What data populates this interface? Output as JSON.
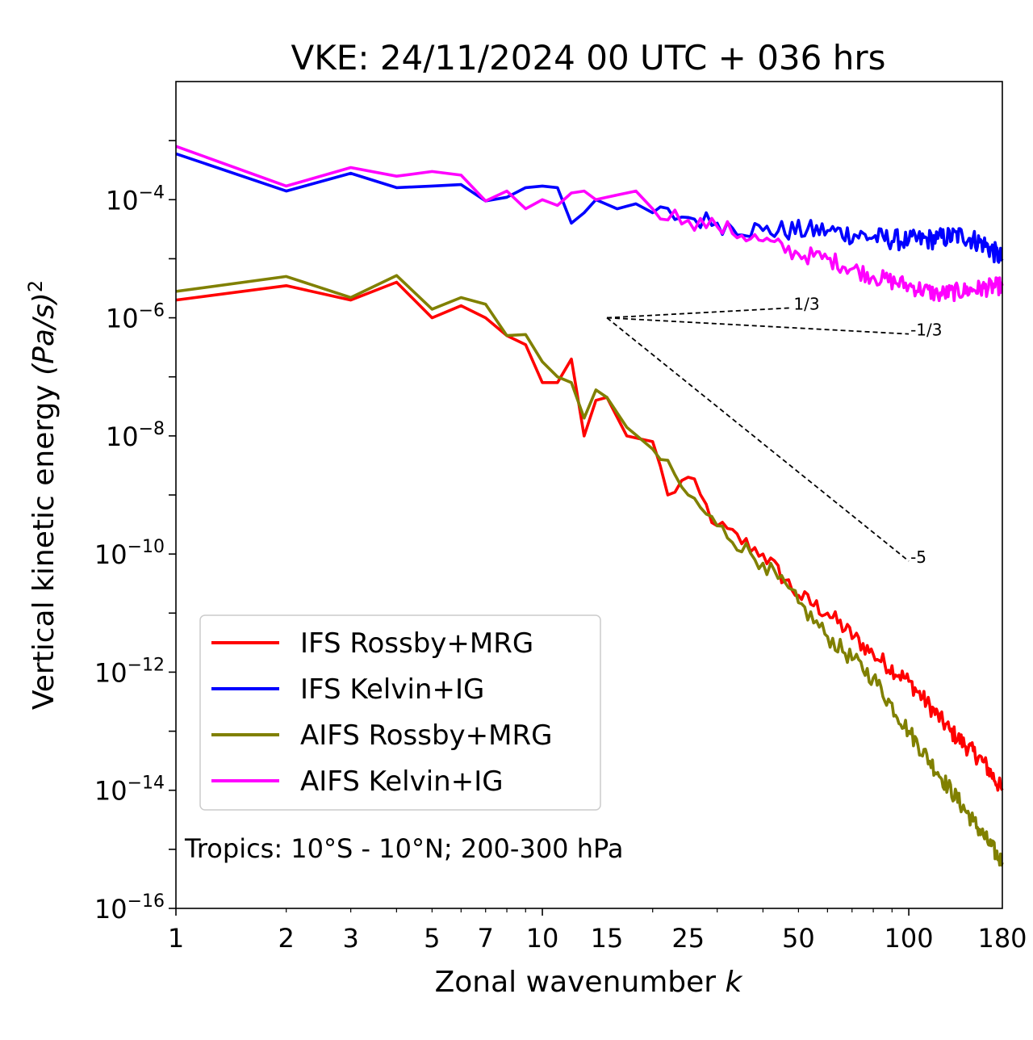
{
  "chart_data": {
    "type": "line",
    "title": "VKE: 24/11/2024 00 UTC + 036 hrs",
    "xlabel": "Zonal wavenumber",
    "xlabel_var": "k",
    "ylabel": "Vertical kinetic energy",
    "ylabel_unit": "(Pa/s)",
    "ylabel_unit_power": "2",
    "x_scale": "log",
    "y_scale": "log",
    "xlim": [
      1,
      180
    ],
    "ylim": [
      1e-16,
      0.01
    ],
    "x_ticks": [
      1,
      2,
      3,
      5,
      7,
      10,
      15,
      25,
      50,
      100,
      180
    ],
    "x_tick_labels": [
      "1",
      "2",
      "3",
      "5",
      "7",
      "10",
      "15",
      "25",
      "50",
      "100",
      "180"
    ],
    "y_ticks": [
      1e-16,
      1e-14,
      1e-12,
      1e-10,
      1e-08,
      1e-06,
      0.0001
    ],
    "y_tick_base": [
      "10",
      "10",
      "10",
      "10",
      "10",
      "10",
      "10"
    ],
    "y_tick_exp": [
      "−16",
      "−14",
      "−12",
      "−10",
      "−8",
      "−6",
      "−4"
    ],
    "grid": false,
    "legend_position": "lower-left",
    "annotation": "Tropics: 10°S - 10°N; 200-300 hPa",
    "reference_slopes": [
      {
        "label": "1/3",
        "slope": 0.3333,
        "x_start": 15,
        "y_start": 1e-06,
        "x_end": 48
      },
      {
        "label": "-1/3",
        "slope": -0.3333,
        "x_start": 15,
        "y_start": 1e-06,
        "x_end": 100
      },
      {
        "label": "-5",
        "slope": -5,
        "x_start": 15,
        "y_start": 1e-06,
        "x_end": 100
      }
    ],
    "series": [
      {
        "name": "IFS Rossby+MRG",
        "color": "#ff0000",
        "anchors": [
          [
            1,
            2e-06
          ],
          [
            2,
            3.5e-06
          ],
          [
            3,
            2e-06
          ],
          [
            4,
            4e-06
          ],
          [
            5,
            1e-06
          ],
          [
            6,
            1.6e-06
          ],
          [
            7,
            1e-06
          ],
          [
            8,
            5e-07
          ],
          [
            9,
            3.5e-07
          ],
          [
            10,
            8e-08
          ],
          [
            11,
            8e-08
          ],
          [
            12,
            2e-07
          ],
          [
            13,
            1e-08
          ],
          [
            14,
            4e-08
          ],
          [
            15,
            4.5e-08
          ],
          [
            17,
            1e-08
          ],
          [
            20,
            8e-09
          ],
          [
            22,
            1e-09
          ],
          [
            25,
            2e-09
          ],
          [
            30,
            3e-10
          ],
          [
            40,
            1e-10
          ],
          [
            50,
            2e-11
          ],
          [
            60,
            1e-11
          ],
          [
            80,
            2e-12
          ],
          [
            100,
            7e-13
          ],
          [
            130,
            1e-13
          ],
          [
            160,
            3e-14
          ],
          [
            180,
            1e-14
          ]
        ],
        "noise": 0.15
      },
      {
        "name": "IFS Kelvin+IG",
        "color": "#0000ff",
        "anchors": [
          [
            1,
            0.0006
          ],
          [
            2,
            0.00014
          ],
          [
            3,
            0.00028
          ],
          [
            4,
            0.00016
          ],
          [
            5,
            0.00017
          ],
          [
            6,
            0.00018
          ],
          [
            7,
            9.5e-05
          ],
          [
            8,
            0.00011
          ],
          [
            9,
            0.00016
          ],
          [
            10,
            0.00017
          ],
          [
            11,
            0.00016
          ],
          [
            12,
            4e-05
          ],
          [
            13,
            6e-05
          ],
          [
            14,
            0.0001
          ],
          [
            16,
            7e-05
          ],
          [
            18,
            8.5e-05
          ],
          [
            20,
            6e-05
          ],
          [
            25,
            5e-05
          ],
          [
            30,
            4e-05
          ],
          [
            40,
            3e-05
          ],
          [
            60,
            3e-05
          ],
          [
            80,
            2.3e-05
          ],
          [
            100,
            2e-05
          ],
          [
            120,
            2.2e-05
          ],
          [
            140,
            2.5e-05
          ],
          [
            160,
            1.8e-05
          ],
          [
            180,
            1e-05
          ]
        ],
        "noise": 0.18
      },
      {
        "name": "AIFS Rossby+MRG",
        "color": "#808000",
        "anchors": [
          [
            1,
            2.8e-06
          ],
          [
            2,
            5e-06
          ],
          [
            3,
            2.2e-06
          ],
          [
            4,
            5.2e-06
          ],
          [
            5,
            1.4e-06
          ],
          [
            6,
            2.2e-06
          ],
          [
            7,
            1.7e-06
          ],
          [
            8,
            5e-07
          ],
          [
            9,
            5.2e-07
          ],
          [
            10,
            1.8e-07
          ],
          [
            11,
            1e-07
          ],
          [
            12,
            8e-08
          ],
          [
            13,
            2e-08
          ],
          [
            14,
            6e-08
          ],
          [
            15,
            4.5e-08
          ],
          [
            17,
            1.4e-08
          ],
          [
            20,
            6e-09
          ],
          [
            25,
            1e-09
          ],
          [
            30,
            3e-10
          ],
          [
            40,
            7e-11
          ],
          [
            50,
            1.5e-11
          ],
          [
            60,
            4e-12
          ],
          [
            80,
            8e-13
          ],
          [
            100,
            1e-13
          ],
          [
            120,
            2e-14
          ],
          [
            150,
            3e-15
          ],
          [
            180,
            6e-16
          ]
        ],
        "noise": 0.15
      },
      {
        "name": "AIFS Kelvin+IG",
        "color": "#ff00ff",
        "anchors": [
          [
            1,
            0.0008
          ],
          [
            2,
            0.00017
          ],
          [
            3,
            0.00035
          ],
          [
            4,
            0.00025
          ],
          [
            5,
            0.0003
          ],
          [
            6,
            0.00026
          ],
          [
            7,
            9.5e-05
          ],
          [
            8,
            0.00014
          ],
          [
            9,
            7e-05
          ],
          [
            10,
            0.0001
          ],
          [
            11,
            8e-05
          ],
          [
            12,
            0.00013
          ],
          [
            13,
            0.00014
          ],
          [
            14,
            0.0001
          ],
          [
            16,
            0.00012
          ],
          [
            18,
            0.00014
          ],
          [
            20,
            7e-05
          ],
          [
            25,
            4.5e-05
          ],
          [
            30,
            3.5e-05
          ],
          [
            40,
            2e-05
          ],
          [
            50,
            1.2e-05
          ],
          [
            60,
            1e-05
          ],
          [
            80,
            5e-06
          ],
          [
            100,
            3.5e-06
          ],
          [
            120,
            2.5e-06
          ],
          [
            150,
            3e-06
          ],
          [
            180,
            3.5e-06
          ]
        ],
        "noise": 0.15
      }
    ]
  }
}
